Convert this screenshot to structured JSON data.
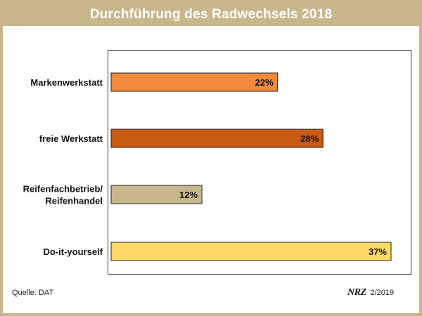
{
  "chart_data": {
    "type": "bar",
    "orientation": "horizontal",
    "title": "Durchführung des Radwechsels 2018",
    "categories": [
      "Markenwerkstatt",
      "freie Werkstatt",
      "Reifenfachbetrieb/ Reifenhandel",
      "Do-it-yourself"
    ],
    "category_lines": [
      [
        "Markenwerkstatt"
      ],
      [
        "freie Werkstatt"
      ],
      [
        "Reifenfachbetrieb/",
        "Reifenhandel"
      ],
      [
        "Do-it-yourself"
      ]
    ],
    "values": [
      22,
      28,
      12,
      37
    ],
    "value_labels": [
      "22%",
      "28%",
      "12%",
      "37%"
    ],
    "bar_colors": [
      "#f08a3c",
      "#c85a14",
      "#c8b68c",
      "#ffd966"
    ],
    "xlim": [
      0,
      40
    ],
    "grid": false,
    "legend": "none"
  },
  "footer": {
    "source": "Quelle: DAT",
    "date": "2/2019"
  },
  "colors": {
    "frame": "#c8b68c",
    "title_text": "#ffffff"
  }
}
